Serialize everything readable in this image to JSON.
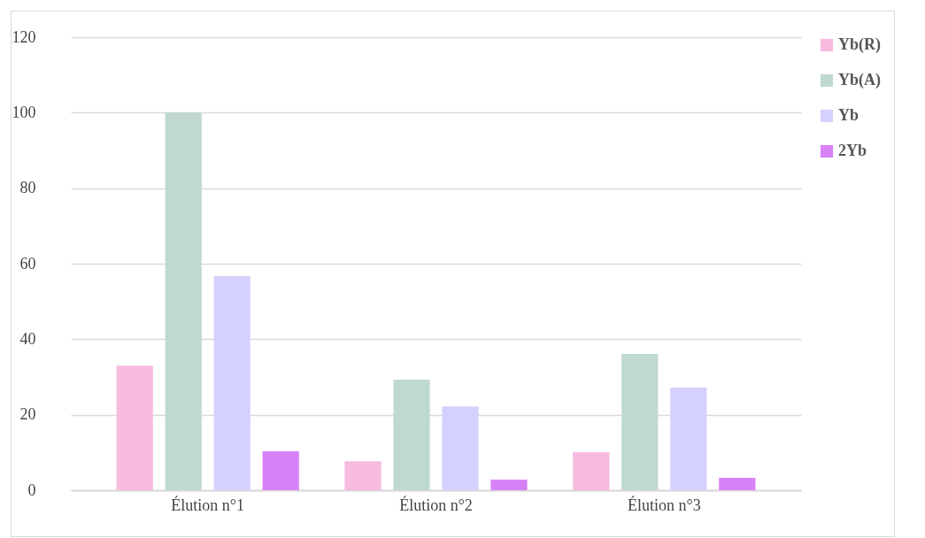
{
  "chart_data": {
    "type": "bar",
    "categories": [
      "Élution n°1",
      "Élution n°2",
      "Élution n°3"
    ],
    "series": [
      {
        "name": "Yb(R)",
        "color": "#f7bbe0",
        "values": [
          33,
          7.7,
          10.1
        ]
      },
      {
        "name": "Yb(A)",
        "color": "#c0d9d0",
        "values": [
          100,
          29.3,
          36.1
        ]
      },
      {
        "name": "Yb",
        "color": "#d4d1fe",
        "values": [
          56.7,
          22.2,
          27.2
        ]
      },
      {
        "name": "2Yb",
        "color": "#d882f8",
        "values": [
          10.3,
          2.8,
          3.3
        ]
      }
    ],
    "ylim": [
      0,
      120
    ],
    "yticks": [
      0,
      20,
      40,
      60,
      80,
      100,
      120
    ],
    "grid": "y",
    "legend": "right"
  }
}
